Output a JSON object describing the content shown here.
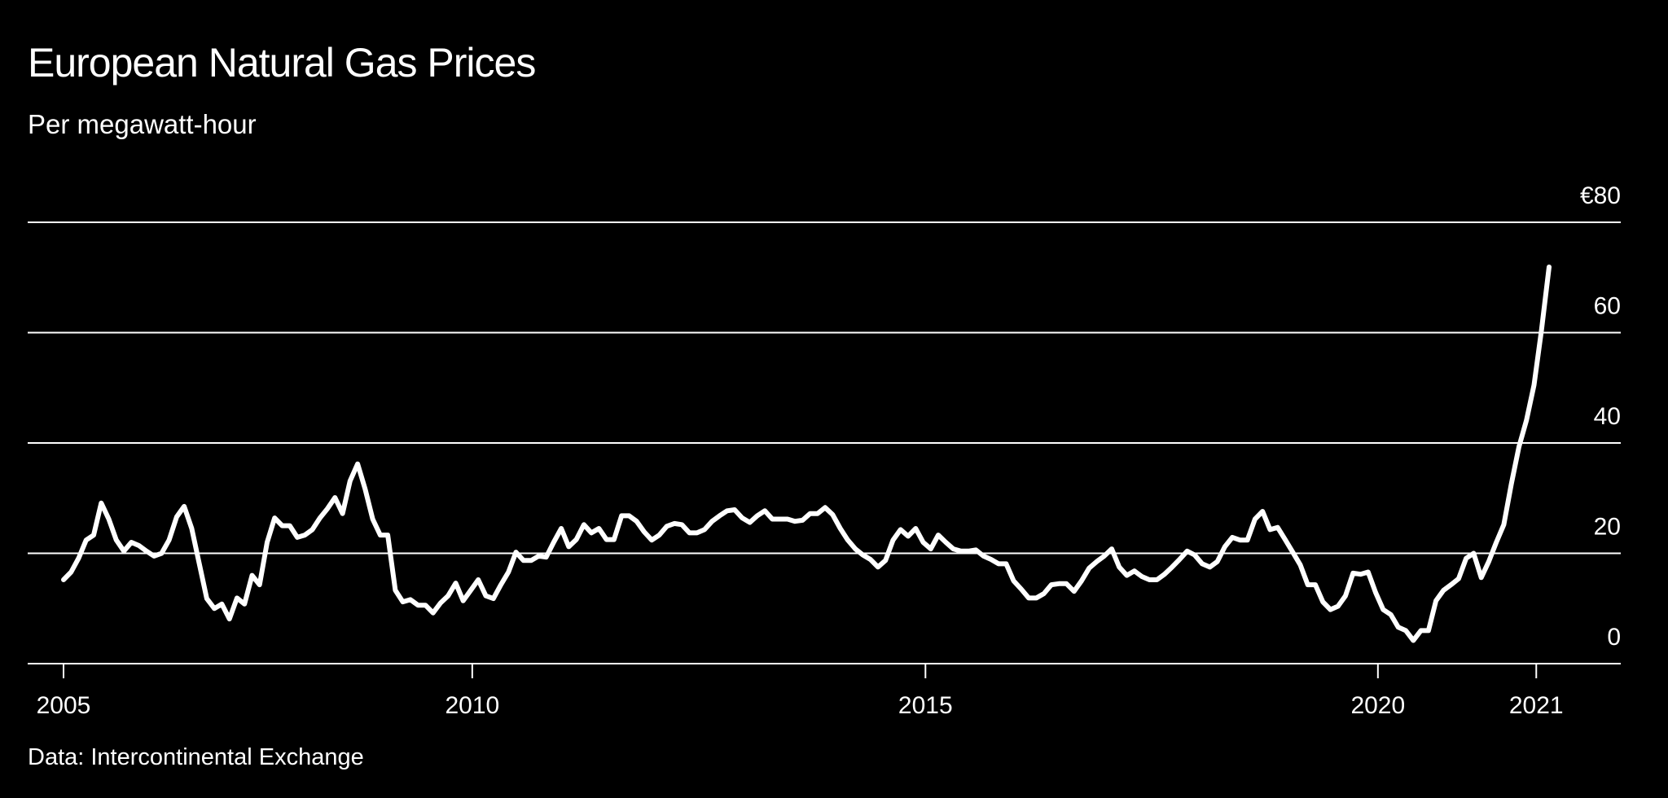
{
  "chart_data": {
    "type": "line",
    "title": "European Natural Gas Prices",
    "subtitle": "Per megawatt-hour",
    "source": "Data: Intercontinental Exchange",
    "xlabel": "",
    "ylabel": "",
    "ylim": [
      0,
      80
    ],
    "grid": true,
    "yticks": [
      {
        "value": 0,
        "label": "0"
      },
      {
        "value": 20,
        "label": "20"
      },
      {
        "value": 40,
        "label": "40"
      },
      {
        "value": 60,
        "label": "60"
      },
      {
        "value": 80,
        "label": "€80"
      }
    ],
    "xticks": [
      {
        "index": 0,
        "label": "2005"
      },
      {
        "index": 54.2,
        "label": "2010"
      },
      {
        "index": 114.3,
        "label": "2015"
      },
      {
        "index": 174.3,
        "label": "2020"
      },
      {
        "index": 195.3,
        "label": "2021"
      }
    ],
    "series": [
      {
        "name": "European natural gas price (€/MWh)",
        "color": "#ffffff",
        "values": [
          15.2,
          16.6,
          19.1,
          22.4,
          23.3,
          29.1,
          26.2,
          22.4,
          20.4,
          22.0,
          21.4,
          20.4,
          19.5,
          20.0,
          22.4,
          26.6,
          28.5,
          24.5,
          18.1,
          11.8,
          10.0,
          10.8,
          8.1,
          11.9,
          10.8,
          16.0,
          14.3,
          22.0,
          26.4,
          25.0,
          25.0,
          22.9,
          23.3,
          24.3,
          26.4,
          28.1,
          30.1,
          27.2,
          33.1,
          36.2,
          31.6,
          26.2,
          23.3,
          23.3,
          13.3,
          11.2,
          11.6,
          10.6,
          10.6,
          9.2,
          11.0,
          12.3,
          14.6,
          11.4,
          13.3,
          15.2,
          12.3,
          11.8,
          14.3,
          16.6,
          20.2,
          18.7,
          18.7,
          19.5,
          19.3,
          22.0,
          24.5,
          21.2,
          22.5,
          25.2,
          23.7,
          24.5,
          22.5,
          22.5,
          26.8,
          26.8,
          25.8,
          23.9,
          22.4,
          23.3,
          24.9,
          25.4,
          25.2,
          23.7,
          23.7,
          24.3,
          25.8,
          26.8,
          27.7,
          27.9,
          26.4,
          25.6,
          26.8,
          27.7,
          26.2,
          26.2,
          26.2,
          25.8,
          26.0,
          27.2,
          27.2,
          28.3,
          27.0,
          24.5,
          22.4,
          20.8,
          19.7,
          18.9,
          17.5,
          18.7,
          22.4,
          24.3,
          23.1,
          24.5,
          22.0,
          20.8,
          23.3,
          22.0,
          20.8,
          20.4,
          20.4,
          20.6,
          19.5,
          18.9,
          18.1,
          18.1,
          15.0,
          13.5,
          11.9,
          11.9,
          12.7,
          14.3,
          14.5,
          14.5,
          13.1,
          15.0,
          17.3,
          18.5,
          19.5,
          20.8,
          17.5,
          16.0,
          16.8,
          15.8,
          15.2,
          15.2,
          16.2,
          17.5,
          18.9,
          20.4,
          19.7,
          18.1,
          17.5,
          18.5,
          21.2,
          22.9,
          22.4,
          22.4,
          26.2,
          27.6,
          24.3,
          24.7,
          22.5,
          20.2,
          17.9,
          14.3,
          14.3,
          11.2,
          9.8,
          10.4,
          12.3,
          16.4,
          16.2,
          16.6,
          12.9,
          9.8,
          8.9,
          6.6,
          6.0,
          4.2,
          6.0,
          6.0,
          11.4,
          13.3,
          14.3,
          15.4,
          19.1,
          20.0,
          15.6,
          18.5,
          22.0,
          25.2,
          32.6,
          39.3,
          44.1,
          50.5,
          60.5,
          71.9
        ]
      }
    ]
  }
}
